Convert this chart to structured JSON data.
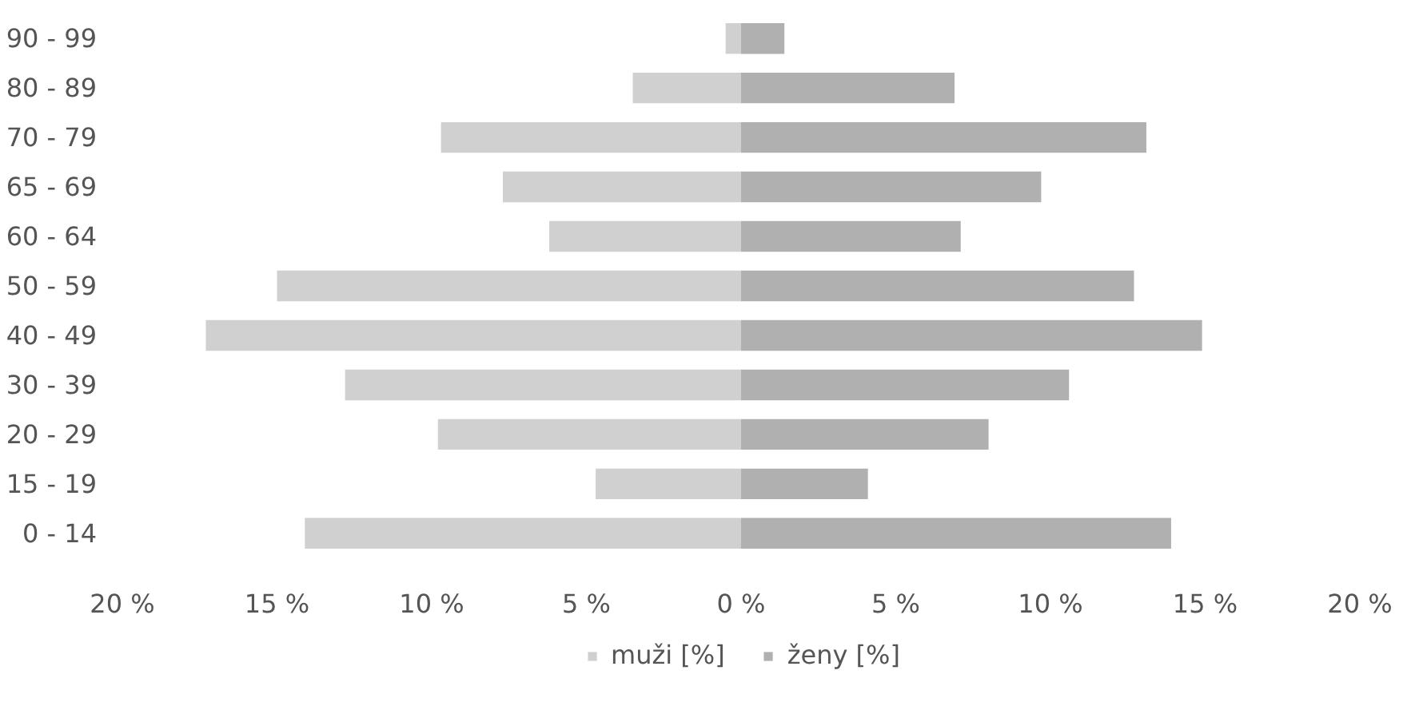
{
  "chart_data": {
    "type": "bar",
    "orientation": "horizontal",
    "categories": [
      "90 - 99",
      "80 - 89",
      "70 - 79",
      "65 - 69",
      "60 - 64",
      "50 - 59",
      "40 - 49",
      "30 - 39",
      "20 - 29",
      "15 - 19",
      "0 - 14"
    ],
    "series": [
      {
        "name": "muži [%]",
        "color": "#d0d0d0",
        "values": [
          -0.5,
          -3.5,
          -9.7,
          -7.7,
          -6.2,
          -15.0,
          -17.3,
          -12.8,
          -9.8,
          -4.7,
          -14.1
        ]
      },
      {
        "name": "ženy [%]",
        "color": "#b0b0b0",
        "values": [
          1.4,
          6.9,
          13.1,
          9.7,
          7.1,
          12.7,
          14.9,
          10.6,
          8.0,
          4.1,
          13.9
        ]
      }
    ],
    "xlim": [
      -20,
      20
    ],
    "xticks": [
      {
        "value": -20,
        "label": "20 %"
      },
      {
        "value": -15,
        "label": "15 %"
      },
      {
        "value": -10,
        "label": "10 %"
      },
      {
        "value": -5,
        "label": "5 %"
      },
      {
        "value": 0,
        "label": "0 %"
      },
      {
        "value": 5,
        "label": "5 %"
      },
      {
        "value": 10,
        "label": "10 %"
      },
      {
        "value": 15,
        "label": "15 %"
      },
      {
        "value": 20,
        "label": "20 %"
      }
    ],
    "grid": false,
    "stacked": true,
    "legend": "bottom"
  }
}
